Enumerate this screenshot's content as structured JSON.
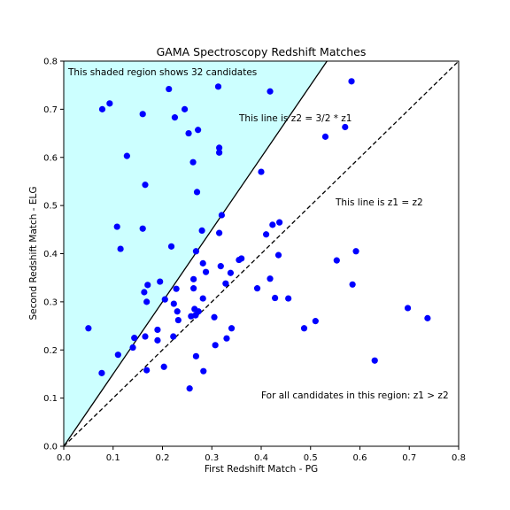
{
  "chart_data": {
    "type": "scatter",
    "title": "GAMA Spectroscopy Redshift Matches",
    "xlabel": "First Redshift Match - PG",
    "ylabel": "Second Redshift Match - ELG",
    "xlim": [
      0.0,
      0.8
    ],
    "ylim": [
      0.0,
      0.8
    ],
    "xticks": [
      "0.0",
      "0.1",
      "0.2",
      "0.3",
      "0.4",
      "0.5",
      "0.6",
      "0.7",
      "0.8"
    ],
    "yticks": [
      "0.0",
      "0.1",
      "0.2",
      "0.3",
      "0.4",
      "0.5",
      "0.6",
      "0.7",
      "0.8"
    ],
    "grid": false,
    "colors": {
      "points": "#0000ff",
      "shade": "#ccffff",
      "lines": "#000000"
    },
    "shaded_region": {
      "label": "This shaded region shows 32 candidates",
      "between": "z2 = 3/2 * z1 and top-left"
    },
    "lines": [
      {
        "label": "This line is z2 = 3/2 * z1",
        "slope": 1.5,
        "style": "solid"
      },
      {
        "label": "This line is z1 = z2",
        "slope": 1.0,
        "style": "dashed"
      }
    ],
    "region_note": "For all candidates in this region: z1 > z2",
    "points": [
      [
        0.05,
        0.245
      ],
      [
        0.077,
        0.152
      ],
      [
        0.078,
        0.7
      ],
      [
        0.093,
        0.712
      ],
      [
        0.108,
        0.456
      ],
      [
        0.11,
        0.19
      ],
      [
        0.115,
        0.41
      ],
      [
        0.128,
        0.603
      ],
      [
        0.14,
        0.205
      ],
      [
        0.143,
        0.225
      ],
      [
        0.16,
        0.69
      ],
      [
        0.16,
        0.452
      ],
      [
        0.163,
        0.32
      ],
      [
        0.165,
        0.543
      ],
      [
        0.165,
        0.228
      ],
      [
        0.168,
        0.158
      ],
      [
        0.168,
        0.3
      ],
      [
        0.17,
        0.335
      ],
      [
        0.19,
        0.242
      ],
      [
        0.19,
        0.22
      ],
      [
        0.195,
        0.342
      ],
      [
        0.203,
        0.165
      ],
      [
        0.205,
        0.305
      ],
      [
        0.213,
        0.742
      ],
      [
        0.218,
        0.415
      ],
      [
        0.222,
        0.228
      ],
      [
        0.223,
        0.296
      ],
      [
        0.225,
        0.683
      ],
      [
        0.228,
        0.327
      ],
      [
        0.23,
        0.28
      ],
      [
        0.232,
        0.262
      ],
      [
        0.245,
        0.7
      ],
      [
        0.253,
        0.65
      ],
      [
        0.255,
        0.12
      ],
      [
        0.258,
        0.27
      ],
      [
        0.262,
        0.59
      ],
      [
        0.263,
        0.328
      ],
      [
        0.263,
        0.347
      ],
      [
        0.265,
        0.285
      ],
      [
        0.267,
        0.272
      ],
      [
        0.268,
        0.405
      ],
      [
        0.268,
        0.187
      ],
      [
        0.27,
        0.528
      ],
      [
        0.272,
        0.657
      ],
      [
        0.273,
        0.28
      ],
      [
        0.28,
        0.448
      ],
      [
        0.282,
        0.38
      ],
      [
        0.282,
        0.307
      ],
      [
        0.283,
        0.156
      ],
      [
        0.288,
        0.362
      ],
      [
        0.305,
        0.268
      ],
      [
        0.307,
        0.21
      ],
      [
        0.313,
        0.747
      ],
      [
        0.315,
        0.61
      ],
      [
        0.315,
        0.62
      ],
      [
        0.315,
        0.443
      ],
      [
        0.318,
        0.374
      ],
      [
        0.32,
        0.48
      ],
      [
        0.328,
        0.338
      ],
      [
        0.33,
        0.224
      ],
      [
        0.338,
        0.36
      ],
      [
        0.34,
        0.245
      ],
      [
        0.355,
        0.387
      ],
      [
        0.36,
        0.39
      ],
      [
        0.392,
        0.328
      ],
      [
        0.4,
        0.57
      ],
      [
        0.41,
        0.44
      ],
      [
        0.418,
        0.348
      ],
      [
        0.418,
        0.737
      ],
      [
        0.423,
        0.46
      ],
      [
        0.428,
        0.308
      ],
      [
        0.435,
        0.397
      ],
      [
        0.437,
        0.465
      ],
      [
        0.455,
        0.307
      ],
      [
        0.487,
        0.245
      ],
      [
        0.51,
        0.26
      ],
      [
        0.53,
        0.643
      ],
      [
        0.553,
        0.386
      ],
      [
        0.57,
        0.663
      ],
      [
        0.583,
        0.758
      ],
      [
        0.585,
        0.336
      ],
      [
        0.592,
        0.405
      ],
      [
        0.63,
        0.178
      ],
      [
        0.697,
        0.287
      ],
      [
        0.737,
        0.266
      ]
    ]
  }
}
